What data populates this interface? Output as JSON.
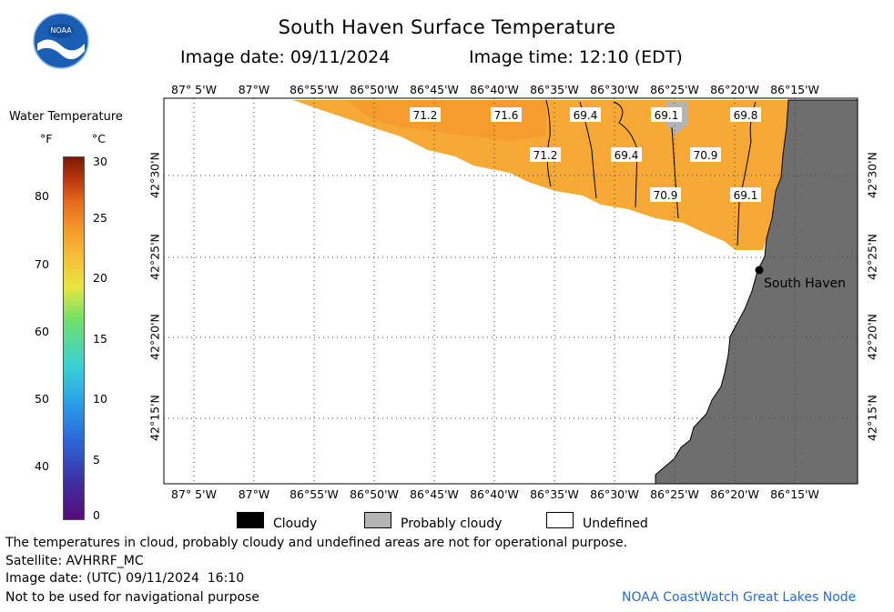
{
  "header": {
    "title": "South Haven Surface Temperature",
    "image_date_label": "Image date: 09/11/2024",
    "image_time_label": "Image time: 12:10 (EDT)"
  },
  "logo": {
    "text": "NOAA"
  },
  "colorbar": {
    "title": "Water Temperature",
    "unit_f": "°F",
    "unit_c": "°C",
    "f_ticks": [
      "80",
      "70",
      "60",
      "50",
      "40"
    ],
    "c_ticks": [
      "30",
      "25",
      "20",
      "15",
      "10",
      "5",
      "0"
    ]
  },
  "map": {
    "top_lon_labels": [
      "87° 5'W",
      "87°W",
      "86°55'W",
      "86°50'W",
      "86°45'W",
      "86°40'W",
      "86°35'W",
      "86°30'W",
      "86°25'W",
      "86°20'W",
      "86°15'W"
    ],
    "bottom_lon_labels": [
      "87° 5'W",
      "87°W",
      "86°55'W",
      "86°50'W",
      "86°45'W",
      "86°40'W",
      "86°35'W",
      "86°30'W",
      "86°25'W",
      "86°20'W",
      "86°15'W"
    ],
    "lat_labels": [
      "42°30'N",
      "42°25'N",
      "42°20'N",
      "42°15'N"
    ],
    "temperature_labels": [
      "71.2",
      "71.6",
      "69.4",
      "69.1",
      "69.8",
      "71.2",
      "69.4",
      "70.9",
      "70.9",
      "69.1"
    ],
    "city_label": "South Haven",
    "colors": {
      "water": "#f7a935",
      "water_dark": "#f49a2b",
      "land": "#6e6e6e",
      "cloud_probable": "#b4b4b4"
    }
  },
  "legend": {
    "cloudy": "Cloudy",
    "probably_cloudy": "Probably cloudy",
    "undefined": "Undefined"
  },
  "footer": {
    "disclaimer": "The temperatures in cloud, probably cloudy and undefined areas are not for operational purpose.",
    "satellite": "Satellite: AVHRRF_MC",
    "utc_date": "Image date: (UTC) 09/11/2024  16:10",
    "nav_warning": "Not to be used for navigational purpose",
    "credit": "NOAA CoastWatch Great Lakes Node"
  }
}
